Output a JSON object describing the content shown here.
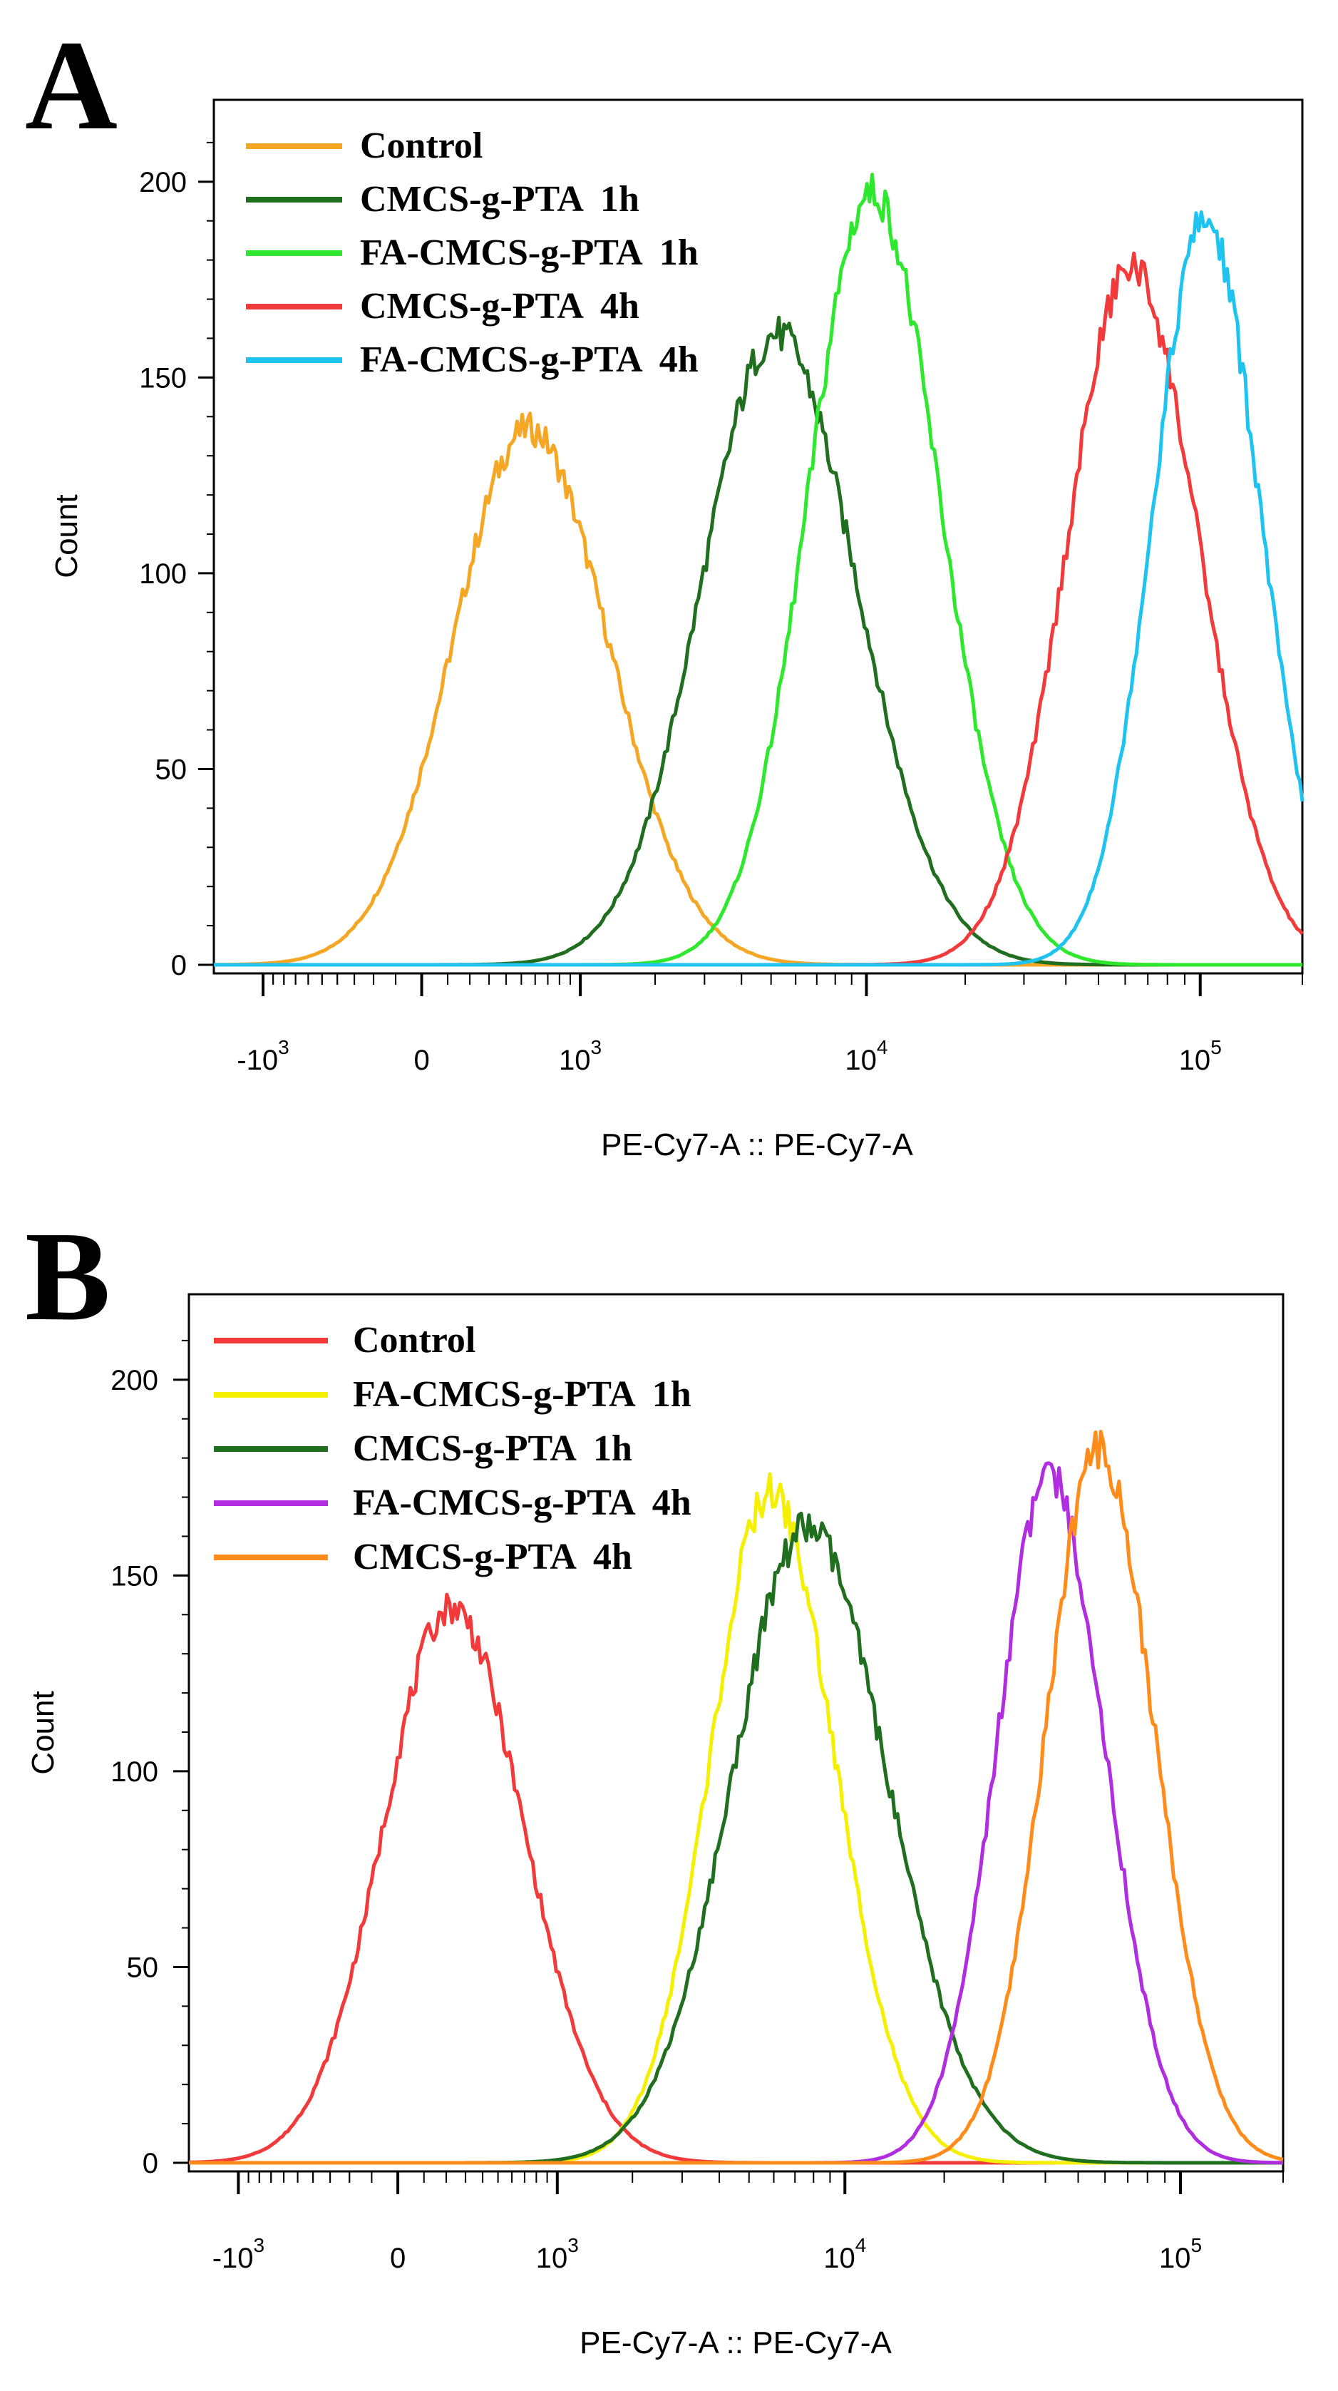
{
  "chart_data": [
    {
      "type": "line",
      "panel_label": "A",
      "xscale": "biexponential",
      "xlabel": "PE-Cy7-A :: PE-Cy7-A",
      "ylabel": "Count",
      "ylim": [
        0,
        220
      ],
      "xlim": [
        -1600,
        200000
      ],
      "y_ticks": [
        0,
        50,
        100,
        150,
        200
      ],
      "y_tick_labels": [
        "0",
        "50",
        "100",
        "150",
        "200"
      ],
      "x_ticks": [
        {
          "value": -1000,
          "base": "-10",
          "exp": "3"
        },
        {
          "value": 0,
          "base": "0",
          "exp": ""
        },
        {
          "value": 1000,
          "base": "10",
          "exp": "3"
        },
        {
          "value": 10000,
          "base": "10",
          "exp": "4"
        },
        {
          "value": 100000,
          "base": "10",
          "exp": "5"
        }
      ],
      "legend_position": "top-left",
      "series": [
        {
          "name": "Control",
          "color": "#f5a623",
          "peak_x": 620,
          "peak_count": 136,
          "width": 1.0
        },
        {
          "name": "CMCS-g-PTA  1h",
          "color": "#1f6f1f",
          "peak_x": 5600,
          "peak_count": 160,
          "width": 1.0
        },
        {
          "name": "FA-CMCS-g-PTA  1h",
          "color": "#2ee82e",
          "peak_x": 11000,
          "peak_count": 196,
          "width": 0.85
        },
        {
          "name": "CMCS-g-PTA  4h",
          "color": "#f23a3a",
          "peak_x": 66000,
          "peak_count": 177,
          "width": 0.85
        },
        {
          "name": "FA-CMCS-g-PTA  4h",
          "color": "#1fc3f0",
          "peak_x": 108000,
          "peak_count": 189,
          "width": 0.7
        }
      ]
    },
    {
      "type": "line",
      "panel_label": "B",
      "xscale": "biexponential",
      "xlabel": "PE-Cy7-A :: PE-Cy7-A",
      "ylabel": "Count",
      "ylim": [
        0,
        220
      ],
      "xlim": [
        -1600,
        200000
      ],
      "y_ticks": [
        0,
        50,
        100,
        150,
        200
      ],
      "y_tick_labels": [
        "0",
        "50",
        "100",
        "150",
        "200"
      ],
      "x_ticks": [
        {
          "value": -1000,
          "base": "-10",
          "exp": "3"
        },
        {
          "value": 0,
          "base": "0",
          "exp": ""
        },
        {
          "value": 1000,
          "base": "10",
          "exp": "3"
        },
        {
          "value": 10000,
          "base": "10",
          "exp": "4"
        },
        {
          "value": 100000,
          "base": "10",
          "exp": "5"
        }
      ],
      "legend_position": "top-left",
      "series": [
        {
          "name": "Control",
          "color": "#f23a3a",
          "peak_x": 270,
          "peak_count": 141,
          "width": 0.9
        },
        {
          "name": "FA-CMCS-g-PTA  1h",
          "color": "#f4f000",
          "peak_x": 6200,
          "peak_count": 170,
          "width": 0.8
        },
        {
          "name": "CMCS-g-PTA  1h",
          "color": "#1f6f1f",
          "peak_x": 8200,
          "peak_count": 161,
          "width": 1.0
        },
        {
          "name": "FA-CMCS-g-PTA  4h",
          "color": "#b02ee0",
          "peak_x": 43000,
          "peak_count": 174,
          "width": 0.7
        },
        {
          "name": "CMCS-g-PTA  4h",
          "color": "#ff8c1a",
          "peak_x": 60000,
          "peak_count": 181,
          "width": 0.7
        }
      ]
    }
  ]
}
